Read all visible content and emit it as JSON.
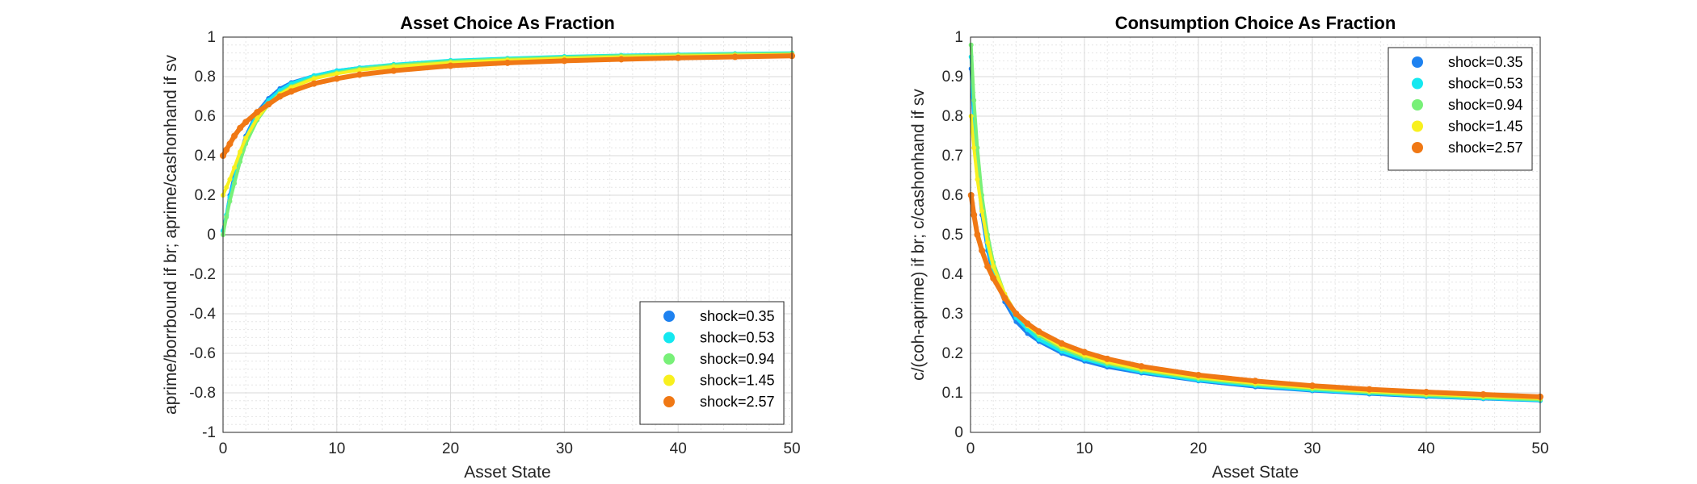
{
  "chart_data": [
    {
      "type": "scatter",
      "title": "Asset Choice As Fraction",
      "xlabel": "Asset State",
      "ylabel": "aprime/borrbound if br; aprime/cashonhand if sv",
      "xlim": [
        0,
        50
      ],
      "ylim": [
        -1,
        1
      ],
      "xticks": [
        "0",
        "10",
        "20",
        "30",
        "40",
        "50"
      ],
      "yticks": [
        "-1",
        "-0.8",
        "-0.6",
        "-0.4",
        "-0.2",
        "0",
        "0.2",
        "0.4",
        "0.6",
        "0.8",
        "1"
      ],
      "grid": true,
      "minor_grid": true,
      "legend_placement": "bottom-right",
      "zero_line": true,
      "series": [
        {
          "name": "shock=0.35",
          "color": "#1e82f0",
          "x": [
            0,
            0.3,
            0.6,
            1,
            1.5,
            2,
            3,
            4,
            5,
            6,
            8,
            10,
            12,
            15,
            20,
            25,
            30,
            35,
            40,
            45,
            50
          ],
          "y": [
            0.02,
            0.1,
            0.2,
            0.3,
            0.41,
            0.5,
            0.62,
            0.69,
            0.74,
            0.77,
            0.805,
            0.83,
            0.845,
            0.86,
            0.88,
            0.89,
            0.9,
            0.905,
            0.91,
            0.913,
            0.915
          ]
        },
        {
          "name": "shock=0.53",
          "color": "#14e8f0",
          "x": [
            0,
            0.3,
            0.6,
            1,
            1.5,
            2,
            3,
            4,
            5,
            6,
            8,
            10,
            12,
            15,
            20,
            25,
            30,
            35,
            40,
            45,
            50
          ],
          "y": [
            0.02,
            0.1,
            0.19,
            0.28,
            0.4,
            0.49,
            0.61,
            0.68,
            0.73,
            0.765,
            0.805,
            0.83,
            0.845,
            0.862,
            0.882,
            0.893,
            0.902,
            0.908,
            0.913,
            0.917,
            0.92
          ]
        },
        {
          "name": "shock=0.94",
          "color": "#78f078",
          "x": [
            0,
            0.3,
            0.6,
            1,
            1.5,
            2,
            3,
            4,
            5,
            6,
            8,
            10,
            12,
            15,
            20,
            25,
            30,
            35,
            40,
            45,
            50
          ],
          "y": [
            0,
            0.09,
            0.17,
            0.26,
            0.37,
            0.46,
            0.58,
            0.66,
            0.715,
            0.75,
            0.795,
            0.82,
            0.84,
            0.857,
            0.877,
            0.889,
            0.898,
            0.905,
            0.91,
            0.914,
            0.917
          ]
        },
        {
          "name": "shock=1.45",
          "color": "#f8f01e",
          "x": [
            0,
            0.3,
            0.6,
            1,
            1.5,
            2,
            3,
            4,
            5,
            6,
            8,
            10,
            12,
            15,
            20,
            25,
            30,
            35,
            40,
            45,
            50
          ],
          "y": [
            0.2,
            0.24,
            0.28,
            0.34,
            0.42,
            0.49,
            0.59,
            0.66,
            0.71,
            0.745,
            0.79,
            0.815,
            0.833,
            0.85,
            0.87,
            0.883,
            0.892,
            0.899,
            0.904,
            0.908,
            0.911
          ]
        },
        {
          "name": "shock=2.57",
          "color": "#f07814",
          "x": [
            0,
            0.3,
            0.6,
            1,
            1.5,
            2,
            3,
            4,
            5,
            6,
            8,
            10,
            12,
            15,
            20,
            25,
            30,
            35,
            40,
            45,
            50
          ],
          "y": [
            0.4,
            0.43,
            0.46,
            0.5,
            0.54,
            0.57,
            0.62,
            0.66,
            0.7,
            0.725,
            0.765,
            0.79,
            0.81,
            0.83,
            0.855,
            0.87,
            0.88,
            0.888,
            0.895,
            0.9,
            0.905
          ]
        }
      ]
    },
    {
      "type": "scatter",
      "title": "Consumption Choice As Fraction",
      "xlabel": "Asset State",
      "ylabel": "c/(coh-aprime) if br; c/cashonhand if sv",
      "xlim": [
        0,
        50
      ],
      "ylim": [
        0,
        1
      ],
      "xticks": [
        "0",
        "10",
        "20",
        "30",
        "40",
        "50"
      ],
      "yticks": [
        "0",
        "0.1",
        "0.2",
        "0.3",
        "0.4",
        "0.5",
        "0.6",
        "0.7",
        "0.8",
        "0.9",
        "1"
      ],
      "grid": true,
      "minor_grid": true,
      "legend_placement": "top-right",
      "zero_line": false,
      "series": [
        {
          "name": "shock=0.35",
          "color": "#1e82f0",
          "x": [
            0.05,
            0.3,
            0.6,
            1,
            1.5,
            2,
            3,
            4,
            5,
            6,
            8,
            10,
            12,
            15,
            20,
            25,
            30,
            35,
            40,
            45,
            50
          ],
          "y": [
            0.92,
            0.78,
            0.66,
            0.55,
            0.46,
            0.4,
            0.33,
            0.28,
            0.25,
            0.23,
            0.2,
            0.18,
            0.165,
            0.15,
            0.13,
            0.115,
            0.105,
            0.097,
            0.09,
            0.085,
            0.08
          ]
        },
        {
          "name": "shock=0.53",
          "color": "#14e8f0",
          "x": [
            0.05,
            0.3,
            0.6,
            1,
            1.5,
            2,
            3,
            4,
            5,
            6,
            8,
            10,
            12,
            15,
            20,
            25,
            30,
            35,
            40,
            45,
            50
          ],
          "y": [
            0.95,
            0.8,
            0.68,
            0.57,
            0.47,
            0.41,
            0.34,
            0.29,
            0.26,
            0.235,
            0.205,
            0.185,
            0.17,
            0.153,
            0.132,
            0.118,
            0.107,
            0.099,
            0.092,
            0.086,
            0.081
          ]
        },
        {
          "name": "shock=0.94",
          "color": "#78f078",
          "x": [
            0.05,
            0.3,
            0.6,
            1,
            1.5,
            2,
            3,
            4,
            5,
            6,
            8,
            10,
            12,
            15,
            20,
            25,
            30,
            35,
            40,
            45,
            50
          ],
          "y": [
            0.98,
            0.84,
            0.72,
            0.6,
            0.5,
            0.43,
            0.35,
            0.3,
            0.27,
            0.245,
            0.212,
            0.19,
            0.174,
            0.157,
            0.136,
            0.121,
            0.11,
            0.101,
            0.094,
            0.088,
            0.083
          ]
        },
        {
          "name": "shock=1.45",
          "color": "#f8f01e",
          "x": [
            0.05,
            0.3,
            0.6,
            1,
            1.5,
            2,
            3,
            4,
            5,
            6,
            8,
            10,
            12,
            15,
            20,
            25,
            30,
            35,
            40,
            45,
            50
          ],
          "y": [
            0.8,
            0.72,
            0.64,
            0.56,
            0.48,
            0.42,
            0.35,
            0.3,
            0.27,
            0.25,
            0.217,
            0.195,
            0.178,
            0.16,
            0.139,
            0.124,
            0.113,
            0.104,
            0.097,
            0.091,
            0.086
          ]
        },
        {
          "name": "shock=2.57",
          "color": "#f07814",
          "x": [
            0.05,
            0.3,
            0.6,
            1,
            1.5,
            2,
            3,
            4,
            5,
            6,
            8,
            10,
            12,
            15,
            20,
            25,
            30,
            35,
            40,
            45,
            50
          ],
          "y": [
            0.6,
            0.55,
            0.5,
            0.46,
            0.42,
            0.39,
            0.34,
            0.3,
            0.275,
            0.255,
            0.225,
            0.203,
            0.186,
            0.167,
            0.145,
            0.13,
            0.118,
            0.109,
            0.102,
            0.096,
            0.09
          ]
        }
      ]
    }
  ]
}
